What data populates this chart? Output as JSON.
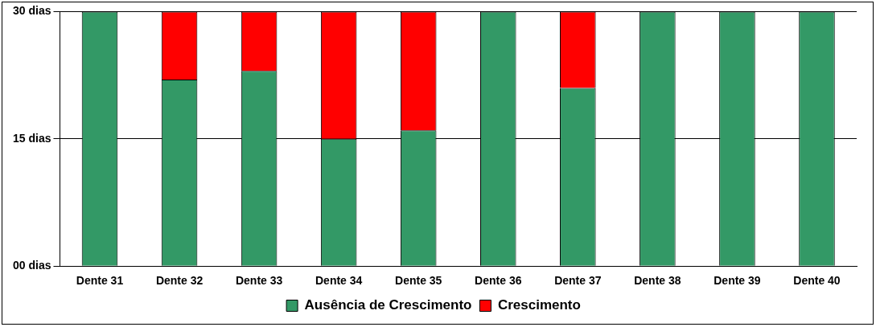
{
  "chart_data": {
    "type": "bar",
    "stacked": true,
    "categories": [
      "Dente 31",
      "Dente 32",
      "Dente 33",
      "Dente 34",
      "Dente 35",
      "Dente 36",
      "Dente 37",
      "Dente 38",
      "Dente 39",
      "Dente 40"
    ],
    "series": [
      {
        "name": "Ausência de Crescimento",
        "color": "#339966",
        "values": [
          30,
          22,
          23,
          15,
          16,
          30,
          21,
          30,
          30,
          30
        ]
      },
      {
        "name": "Crescimento",
        "color": "#ff0000",
        "values": [
          0,
          8,
          7,
          15,
          14,
          0,
          9,
          0,
          0,
          0
        ]
      }
    ],
    "ylim": [
      0,
      30
    ],
    "yticks": [
      {
        "value": 0,
        "label": "00 dias"
      },
      {
        "value": 15,
        "label": "15 dias"
      },
      {
        "value": 30,
        "label": "30 dias"
      }
    ],
    "grid": "y",
    "legend": "bottom"
  }
}
